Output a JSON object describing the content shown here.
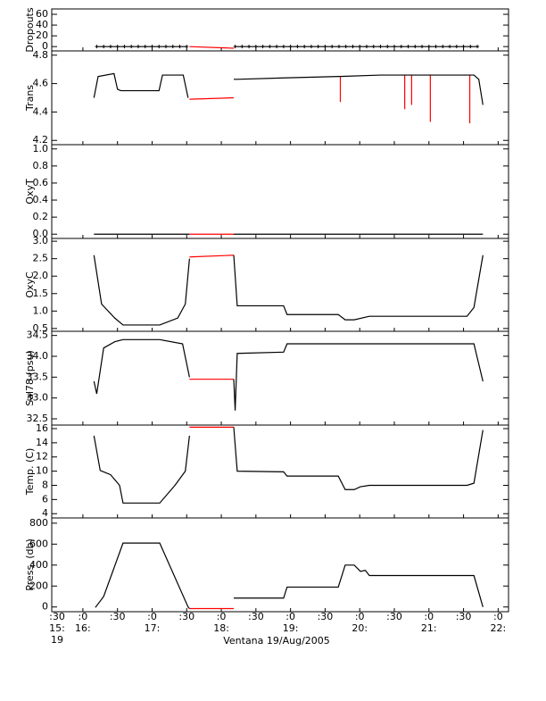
{
  "x_axis": {
    "xlim": [
      15.55,
      22.15
    ],
    "xticks": [
      {
        "value": 15.5,
        "label": ":30"
      },
      {
        "value": 16,
        "label": ":0"
      },
      {
        "value": 16.5,
        "label": ":30"
      },
      {
        "value": 17,
        "label": ":0"
      },
      {
        "value": 17.5,
        "label": ":30"
      },
      {
        "value": 18,
        "label": ":0"
      },
      {
        "value": 18.5,
        "label": ":30"
      },
      {
        "value": 19,
        "label": ":0"
      },
      {
        "value": 19.5,
        "label": ":30"
      },
      {
        "value": 20,
        "label": ":0"
      },
      {
        "value": 20.5,
        "label": ":30"
      },
      {
        "value": 21,
        "label": ":0"
      },
      {
        "value": 21.5,
        "label": ":30"
      },
      {
        "value": 22,
        "label": ":0"
      }
    ],
    "hour_labels": [
      {
        "value": 15.5,
        "label": "15:"
      },
      {
        "value": 16,
        "label": "16:"
      },
      {
        "value": 17,
        "label": "17:"
      },
      {
        "value": 18,
        "label": "18:"
      },
      {
        "value": 19,
        "label": "19:"
      },
      {
        "value": 20,
        "label": "20:"
      },
      {
        "value": 21,
        "label": "21:"
      },
      {
        "value": 22,
        "label": "22:"
      }
    ],
    "day_label": "19",
    "xlabel": "Ventana 19/Aug/2005"
  },
  "chart_data": [
    {
      "type": "line",
      "ylabel": "Dropouts",
      "ylim": [
        -8,
        70
      ],
      "yticks": [
        0,
        20,
        40,
        60
      ],
      "series": [
        {
          "color": "#ff0000",
          "x": [
            17.54,
            18.18
          ],
          "values": [
            0,
            -3
          ]
        },
        {
          "color": "#000000",
          "marker": "+",
          "x": [
            16.2,
            16.3,
            16.4,
            16.5,
            16.6,
            16.7,
            16.8,
            16.9,
            17.0,
            17.1,
            17.2,
            17.3,
            17.4,
            17.5,
            17.85,
            18.2,
            18.3,
            18.4,
            18.5,
            18.6,
            18.7,
            18.8,
            18.9,
            19.0,
            19.1,
            19.2,
            19.3,
            19.4,
            19.5,
            19.6,
            19.7,
            19.8,
            19.9,
            20.0,
            20.1,
            20.2,
            20.3,
            20.4,
            20.5,
            20.6,
            20.7,
            20.8,
            20.9,
            21.0,
            21.1,
            21.2,
            21.3,
            21.4,
            21.5,
            21.6,
            21.7
          ],
          "values": [
            0,
            0,
            0,
            0,
            0,
            0,
            0,
            0,
            0,
            0,
            0,
            0,
            0,
            0,
            null,
            0,
            0,
            0,
            0,
            0,
            0,
            0,
            0,
            0,
            0,
            0,
            0,
            0,
            0,
            0,
            0,
            0,
            0,
            0,
            0,
            0,
            0,
            0,
            0,
            0,
            0,
            0,
            0,
            0,
            0,
            0,
            0,
            0,
            0,
            0,
            0
          ]
        }
      ]
    },
    {
      "type": "line",
      "ylabel": "Trans",
      "ylim": [
        4.17,
        4.83
      ],
      "yticks": [
        4.2,
        4.4,
        4.6,
        4.8
      ],
      "series": [
        {
          "color": "#ff0000",
          "x": [
            17.54,
            18.18,
            18.2,
            19.72,
            19.72,
            19.73,
            20.65,
            20.65,
            20.66,
            20.75,
            20.75,
            20.76,
            21.02,
            21.02,
            21.03,
            21.59,
            21.59
          ],
          "values": [
            4.49,
            4.5,
            null,
            4.65,
            4.47,
            null,
            4.66,
            4.42,
            null,
            4.66,
            4.45,
            null,
            4.66,
            4.33,
            null,
            4.66,
            4.32
          ]
        },
        {
          "color": "#000000",
          "x": [
            16.16,
            16.22,
            16.45,
            16.5,
            16.55,
            17.1,
            17.15,
            17.45,
            17.52,
            17.86,
            18.18,
            18.23,
            18.9,
            19.7,
            20.3,
            21.65,
            21.72,
            21.78
          ],
          "values": [
            4.5,
            4.65,
            4.67,
            4.56,
            4.55,
            4.55,
            4.66,
            4.66,
            4.5,
            null,
            4.63,
            4.63,
            4.64,
            4.65,
            4.66,
            4.66,
            4.63,
            4.45
          ]
        }
      ]
    },
    {
      "type": "line",
      "ylabel": "OxyT",
      "ylim": [
        -0.05,
        1.05
      ],
      "yticks": [
        {
          "value": 0,
          "label": "0.0"
        },
        0.2,
        0.4,
        0.6,
        0.8,
        {
          "value": 1,
          "label": "1.0"
        }
      ],
      "series": [
        {
          "color": "#ff0000",
          "x": [
            17.54,
            18.18
          ],
          "values": [
            0,
            0
          ]
        },
        {
          "color": "#000000",
          "x": [
            16.16,
            17.54,
            17.86,
            18.18,
            21.78
          ],
          "values": [
            0,
            0,
            null,
            0,
            0
          ]
        }
      ]
    },
    {
      "type": "line",
      "ylabel": "OxyC",
      "ylim": [
        0.42,
        3.08
      ],
      "yticks": [
        0.5,
        {
          "value": 1,
          "label": "1.0"
        },
        1.5,
        {
          "value": 2,
          "label": "2.0"
        },
        2.5,
        {
          "value": 3,
          "label": "3.0"
        }
      ],
      "series": [
        {
          "color": "#ff0000",
          "x": [
            17.54,
            18.18
          ],
          "values": [
            2.55,
            2.6
          ]
        },
        {
          "color": "#000000",
          "x": [
            16.16,
            16.27,
            16.46,
            16.58,
            17.11,
            17.37,
            17.48,
            17.54,
            17.86,
            18.18,
            18.23,
            18.9,
            18.95,
            19.69,
            19.79,
            19.92,
            20.14,
            21.55,
            21.65,
            21.78
          ],
          "values": [
            2.6,
            1.2,
            0.8,
            0.6,
            0.6,
            0.8,
            1.2,
            2.5,
            null,
            2.6,
            1.15,
            1.15,
            0.9,
            0.9,
            0.75,
            0.75,
            0.85,
            0.85,
            1.1,
            2.6
          ]
        }
      ]
    },
    {
      "type": "line",
      "ylabel": "Sal78 (psu)",
      "ylim": [
        32.35,
        34.6
      ],
      "yticks": [
        32.5,
        {
          "value": 33,
          "label": "33.0"
        },
        33.5,
        {
          "value": 34,
          "label": "34.0"
        },
        34.5
      ],
      "series": [
        {
          "color": "#ff0000",
          "x": [
            17.54,
            18.18
          ],
          "values": [
            33.45,
            33.45
          ]
        },
        {
          "color": "#000000",
          "x": [
            16.16,
            16.2,
            16.3,
            16.46,
            16.58,
            17.11,
            17.44,
            17.54,
            17.86,
            18.18,
            18.2,
            18.23,
            18.9,
            18.95,
            21.65,
            21.78
          ],
          "values": [
            33.4,
            33.1,
            34.2,
            34.35,
            34.4,
            34.4,
            34.3,
            33.5,
            null,
            33.45,
            32.7,
            34.07,
            34.1,
            34.3,
            34.3,
            33.4
          ]
        }
      ]
    },
    {
      "type": "line",
      "ylabel": "Temp. (C)",
      "ylim": [
        3.4,
        16.5
      ],
      "yticks": [
        4,
        6,
        8,
        10,
        12,
        14,
        16
      ],
      "series": [
        {
          "color": "#ff0000",
          "x": [
            17.54,
            18.18
          ],
          "values": [
            16.2,
            16.2
          ]
        },
        {
          "color": "#000000",
          "x": [
            16.16,
            16.25,
            16.4,
            16.53,
            16.58,
            17.11,
            17.33,
            17.48,
            17.54,
            17.86,
            18.18,
            18.23,
            18.9,
            18.95,
            19.69,
            19.79,
            19.92,
            20.01,
            20.14,
            21.55,
            21.65,
            21.78
          ],
          "values": [
            15,
            10.1,
            9.5,
            8,
            5.5,
            5.5,
            8,
            10,
            15,
            null,
            16.2,
            10,
            9.9,
            9.3,
            9.3,
            7.4,
            7.4,
            7.8,
            8,
            8,
            8.3,
            15.8
          ]
        }
      ]
    },
    {
      "type": "line",
      "ylabel": "Press. (db)",
      "ylim": [
        -45,
        850
      ],
      "yticks": [
        0,
        200,
        400,
        600,
        800
      ],
      "series": [
        {
          "color": "#ff0000",
          "x": [
            17.54,
            18.18
          ],
          "values": [
            -15,
            -15
          ]
        },
        {
          "color": "#000000",
          "x": [
            16.18,
            16.3,
            16.58,
            17.11,
            17.52,
            17.54,
            17.86,
            18.18,
            18.9,
            18.95,
            19.69,
            19.79,
            19.92,
            20.01,
            20.08,
            20.14,
            21.65,
            21.78
          ],
          "values": [
            -5,
            100,
            610,
            610,
            0,
            -15,
            null,
            85,
            85,
            190,
            190,
            400,
            400,
            340,
            350,
            300,
            300,
            0
          ]
        }
      ]
    }
  ]
}
